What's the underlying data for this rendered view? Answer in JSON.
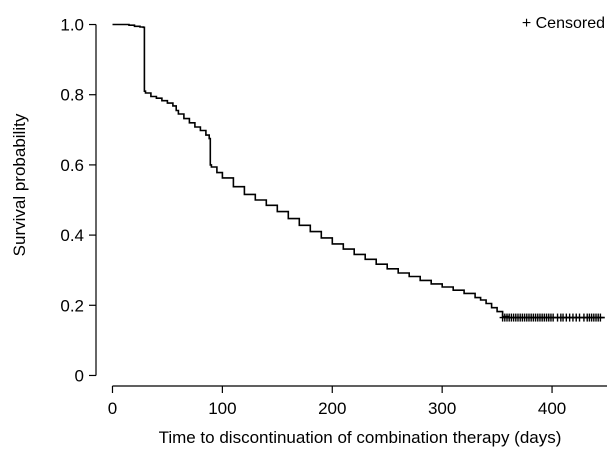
{
  "chart_data": {
    "type": "line",
    "subtype": "kaplan-meier-step",
    "title": "",
    "xlabel": "Time to discontinuation of combination therapy (days)",
    "ylabel": "Survival probability",
    "xlim": [
      -15,
      450
    ],
    "ylim": [
      -0.03,
      1.03
    ],
    "xticks": [
      0,
      100,
      200,
      300,
      400
    ],
    "xtick_labels": [
      "0",
      "100",
      "200",
      "300",
      "400"
    ],
    "yticks": [
      0,
      0.2,
      0.4,
      0.6,
      0.8,
      1.0
    ],
    "ytick_labels": [
      "0",
      "0.2",
      "0.4",
      "0.6",
      "0.8",
      "1.0"
    ],
    "grid": false,
    "legend": {
      "text": "+ Censored",
      "placement": "top-right"
    },
    "series": [
      {
        "x": [
          0,
          5,
          10,
          15,
          20,
          25,
          28,
          29,
          30,
          35,
          40,
          45,
          50,
          55,
          58,
          60,
          65,
          70,
          75,
          80,
          85,
          88,
          89,
          90,
          95,
          100,
          110,
          120,
          130,
          140,
          150,
          160,
          170,
          180,
          190,
          200,
          210,
          220,
          230,
          240,
          250,
          260,
          270,
          280,
          290,
          300,
          310,
          320,
          330,
          335,
          340,
          345,
          350,
          355,
          360,
          380,
          400,
          420,
          440,
          448
        ],
        "y": [
          1.0,
          1.0,
          1.0,
          0.998,
          0.995,
          0.993,
          0.992,
          0.81,
          0.805,
          0.795,
          0.79,
          0.783,
          0.776,
          0.768,
          0.755,
          0.745,
          0.732,
          0.72,
          0.708,
          0.698,
          0.685,
          0.675,
          0.6,
          0.594,
          0.578,
          0.563,
          0.538,
          0.516,
          0.5,
          0.485,
          0.467,
          0.447,
          0.428,
          0.41,
          0.392,
          0.375,
          0.36,
          0.345,
          0.331,
          0.317,
          0.304,
          0.292,
          0.282,
          0.271,
          0.261,
          0.252,
          0.243,
          0.234,
          0.222,
          0.215,
          0.205,
          0.193,
          0.182,
          0.168,
          0.165,
          0.165,
          0.165,
          0.165,
          0.165,
          0.165
        ]
      }
    ],
    "censored": {
      "y": 0.165,
      "x": [
        355,
        357,
        359,
        361,
        363,
        365,
        367,
        369,
        371,
        373,
        375,
        377,
        379,
        381,
        383,
        385,
        387,
        389,
        391,
        393,
        395,
        397,
        399,
        401,
        405,
        408,
        410,
        413,
        416,
        419,
        422,
        425,
        429,
        432,
        434,
        436,
        438,
        440,
        442,
        444
      ]
    }
  }
}
